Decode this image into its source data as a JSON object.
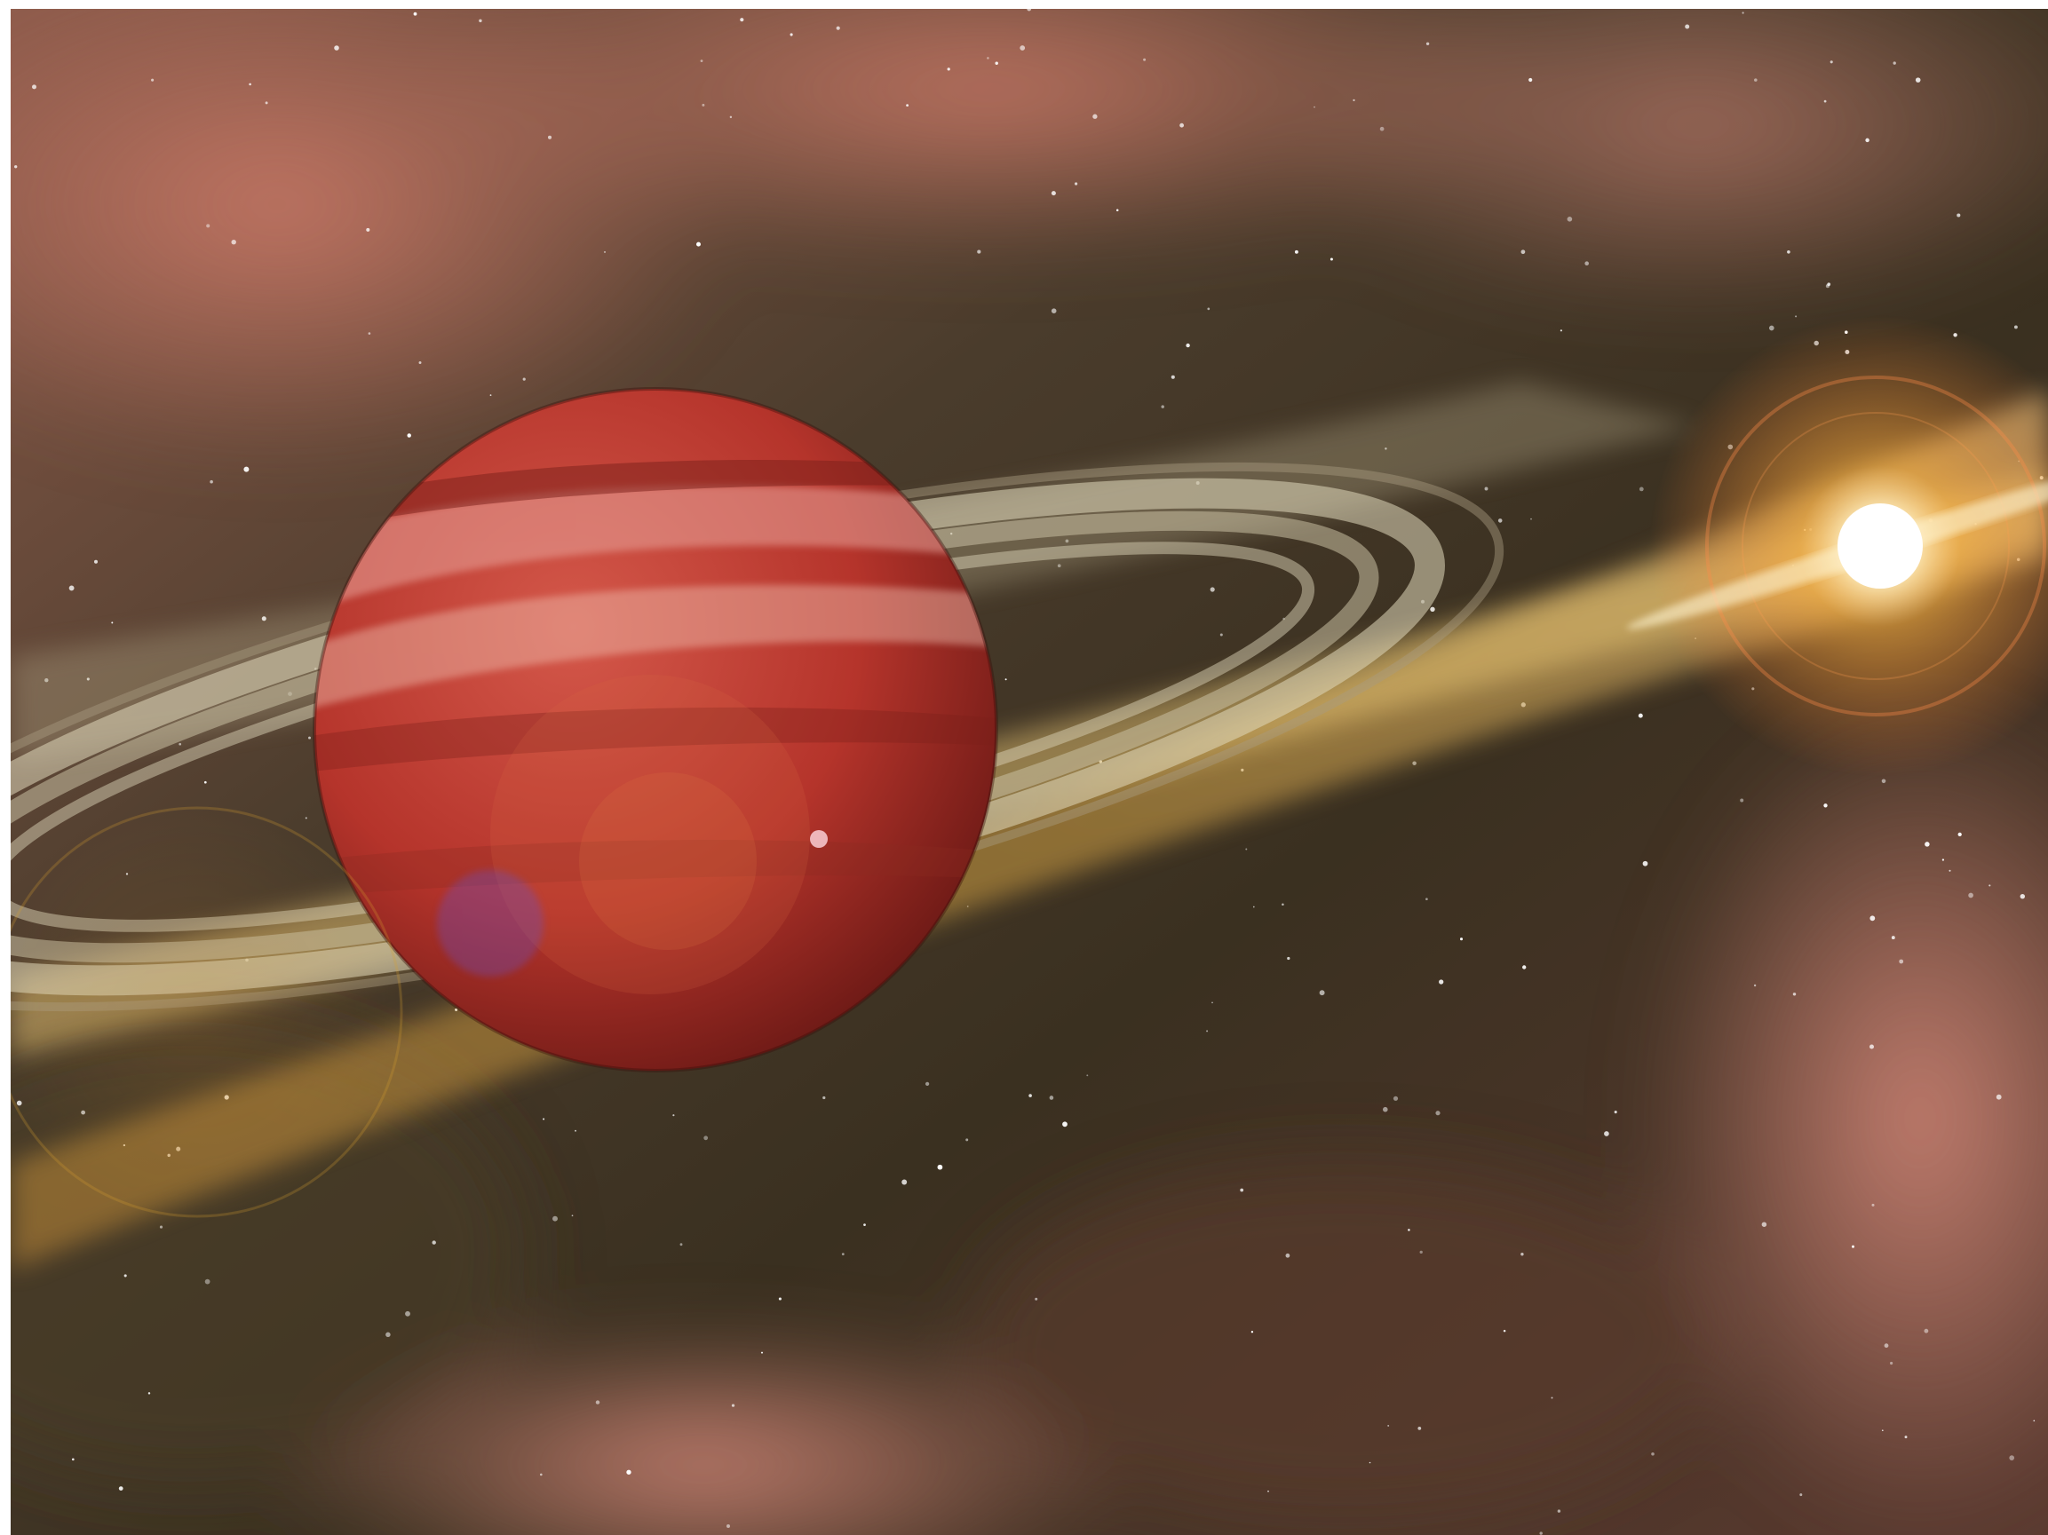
{
  "scene": {
    "subject": "gas-giant-planet",
    "elements": [
      "nebula-clouds",
      "starfield",
      "dust-disk",
      "planet-rings",
      "gas-giant",
      "star",
      "lens-flare"
    ],
    "colors": {
      "space_dark": "#2a2418",
      "nebula_red": "#b85a4e",
      "nebula_pink": "#d77a6c",
      "disk_gold": "#e8b24a",
      "disk_light": "#f6d27a",
      "ring_pale": "#d8d0b4",
      "planet_red": "#b5342b",
      "planet_dark": "#7a1f1a",
      "planet_band": "#e8a39a",
      "star_core": "#ffffff",
      "star_glow": "#ffb040"
    },
    "star_count": 260
  }
}
